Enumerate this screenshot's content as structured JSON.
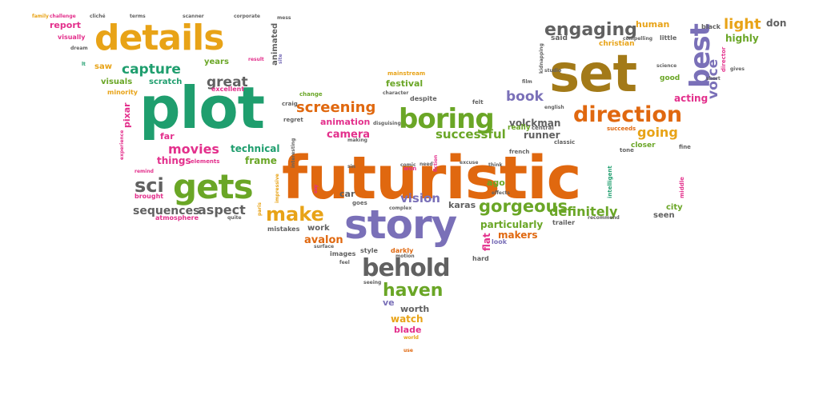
{
  "colors": {
    "green": "#1f9e6e",
    "orange": "#e0680f",
    "gold": "#e8a317",
    "olive": "#6aa626",
    "purple": "#7a70b8",
    "gray": "#616161",
    "pink": "#e3308c",
    "brown": "#a37a18"
  },
  "words": [
    {
      "text": "futuristic",
      "color": "orange"
    },
    {
      "text": "plot",
      "color": "green"
    },
    {
      "text": "set",
      "color": "brown"
    },
    {
      "text": "details",
      "color": "gold"
    },
    {
      "text": "story",
      "color": "purple"
    },
    {
      "text": "gets",
      "color": "olive"
    },
    {
      "text": "boring",
      "color": "olive"
    },
    {
      "text": "behold",
      "color": "gray"
    },
    {
      "text": "best",
      "color": "purple"
    },
    {
      "text": "direction",
      "color": "orange"
    },
    {
      "text": "engaging",
      "color": "gray"
    },
    {
      "text": "make",
      "color": "gold"
    },
    {
      "text": "gorgeous",
      "color": "olive"
    },
    {
      "text": "haven",
      "color": "olive"
    },
    {
      "text": "capture",
      "color": "green"
    },
    {
      "text": "screening",
      "color": "orange"
    },
    {
      "text": "sci",
      "color": "gray"
    },
    {
      "text": "light",
      "color": "gold"
    },
    {
      "text": "voice",
      "color": "purple"
    },
    {
      "text": "great",
      "color": "gray"
    },
    {
      "text": "movies",
      "color": "pink"
    },
    {
      "text": "aspect",
      "color": "gray"
    },
    {
      "text": "sequences",
      "color": "gray"
    },
    {
      "text": "definitely",
      "color": "olive"
    },
    {
      "text": "vision",
      "color": "purple"
    },
    {
      "text": "book",
      "color": "purple"
    },
    {
      "text": "successful",
      "color": "olive"
    },
    {
      "text": "going",
      "color": "gold"
    },
    {
      "text": "camera",
      "color": "pink"
    },
    {
      "text": "volckman",
      "color": "gray"
    },
    {
      "text": "report",
      "color": "pink"
    },
    {
      "text": "don",
      "color": "gray"
    },
    {
      "text": "highly",
      "color": "olive"
    },
    {
      "text": "acting",
      "color": "pink"
    },
    {
      "text": "human",
      "color": "gold"
    },
    {
      "text": "technical",
      "color": "green"
    },
    {
      "text": "frame",
      "color": "olive"
    },
    {
      "text": "things",
      "color": "pink"
    },
    {
      "text": "visuals",
      "color": "olive"
    },
    {
      "text": "scratch",
      "color": "green"
    },
    {
      "text": "years",
      "color": "olive"
    },
    {
      "text": "animated",
      "color": "gray"
    },
    {
      "text": "saw",
      "color": "gold"
    },
    {
      "text": "festival",
      "color": "olive"
    },
    {
      "text": "particularly",
      "color": "olive"
    },
    {
      "text": "makers",
      "color": "orange"
    },
    {
      "text": "runner",
      "color": "gray"
    },
    {
      "text": "karas",
      "color": "gray"
    },
    {
      "text": "pixar",
      "color": "pink"
    },
    {
      "text": "far",
      "color": "pink"
    },
    {
      "text": "car",
      "color": "gray"
    },
    {
      "text": "work",
      "color": "gray"
    },
    {
      "text": "avalon",
      "color": "orange"
    },
    {
      "text": "watch",
      "color": "gold"
    },
    {
      "text": "blade",
      "color": "pink"
    },
    {
      "text": "worth",
      "color": "gray"
    },
    {
      "text": "ve",
      "color": "purple"
    },
    {
      "text": "city",
      "color": "olive"
    },
    {
      "text": "seen",
      "color": "gray"
    },
    {
      "text": "flat",
      "color": "pink"
    },
    {
      "text": "ago",
      "color": "olive"
    },
    {
      "text": "animation",
      "color": "pink"
    },
    {
      "text": "said",
      "color": "gray"
    },
    {
      "text": "christian",
      "color": "gold"
    },
    {
      "text": "black",
      "color": "gray"
    },
    {
      "text": "good",
      "color": "olive"
    },
    {
      "text": "little",
      "color": "gray"
    },
    {
      "text": "brought",
      "color": "pink"
    },
    {
      "text": "atmosphere",
      "color": "pink"
    },
    {
      "text": "elements",
      "color": "pink"
    },
    {
      "text": "minority",
      "color": "gold"
    },
    {
      "text": "excellent",
      "color": "pink"
    },
    {
      "text": "craig",
      "color": "gray"
    },
    {
      "text": "regret",
      "color": "gray"
    },
    {
      "text": "change",
      "color": "olive"
    },
    {
      "text": "mistakes",
      "color": "gray"
    },
    {
      "text": "images",
      "color": "gray"
    },
    {
      "text": "style",
      "color": "gray"
    },
    {
      "text": "darkly",
      "color": "orange"
    },
    {
      "text": "trailer",
      "color": "gray"
    },
    {
      "text": "look",
      "color": "purple"
    },
    {
      "text": "hard",
      "color": "gray"
    },
    {
      "text": "closer",
      "color": "olive"
    },
    {
      "text": "fine",
      "color": "gray"
    },
    {
      "text": "tone",
      "color": "gray"
    },
    {
      "text": "middle",
      "color": "pink"
    },
    {
      "text": "intelligent",
      "color": "green"
    },
    {
      "text": "succeeds",
      "color": "orange"
    },
    {
      "text": "classic",
      "color": "gray"
    },
    {
      "text": "french",
      "color": "gray"
    },
    {
      "text": "despite",
      "color": "gray"
    },
    {
      "text": "mainstream",
      "color": "gold"
    },
    {
      "text": "character",
      "color": "gray"
    },
    {
      "text": "felt",
      "color": "gray"
    },
    {
      "text": "really",
      "color": "olive"
    },
    {
      "text": "central",
      "color": "gray"
    },
    {
      "text": "won",
      "color": "pink"
    },
    {
      "text": "goes",
      "color": "gray"
    },
    {
      "text": "complex",
      "color": "gray"
    },
    {
      "text": "effects",
      "color": "gray"
    },
    {
      "text": "dream",
      "color": "gray"
    },
    {
      "text": "visually",
      "color": "pink"
    },
    {
      "text": "family",
      "color": "gold"
    },
    {
      "text": "challenge",
      "color": "pink"
    },
    {
      "text": "cliché",
      "color": "gray"
    },
    {
      "text": "terms",
      "color": "gray"
    },
    {
      "text": "scanner",
      "color": "gray"
    },
    {
      "text": "corporate",
      "color": "gray"
    },
    {
      "text": "mess",
      "color": "gray"
    },
    {
      "text": "result",
      "color": "pink"
    },
    {
      "text": "site",
      "color": "purple"
    },
    {
      "text": "lt",
      "color": "green"
    },
    {
      "text": "remind",
      "color": "pink"
    },
    {
      "text": "experience",
      "color": "pink"
    },
    {
      "text": "impressive",
      "color": "gold"
    },
    {
      "text": "paris",
      "color": "gold"
    },
    {
      "text": "quite",
      "color": "gray"
    },
    {
      "text": "surface",
      "color": "gray"
    },
    {
      "text": "feel",
      "color": "gray"
    },
    {
      "text": "seeing",
      "color": "gray"
    },
    {
      "text": "motion",
      "color": "gray"
    },
    {
      "text": "world",
      "color": "gold"
    },
    {
      "text": "use",
      "color": "orange"
    },
    {
      "text": "fiction",
      "color": "pink"
    },
    {
      "text": "comic",
      "color": "gray"
    },
    {
      "text": "need",
      "color": "gray"
    },
    {
      "text": "excuse",
      "color": "gray"
    },
    {
      "text": "think",
      "color": "gray"
    },
    {
      "text": "making",
      "color": "gray"
    },
    {
      "text": "disguising",
      "color": "gray"
    },
    {
      "text": "interesting",
      "color": "gray"
    },
    {
      "text": "say",
      "color": "pink"
    },
    {
      "text": "sin",
      "color": "gray"
    },
    {
      "text": "film",
      "color": "gray"
    },
    {
      "text": "director",
      "color": "pink"
    },
    {
      "text": "gives",
      "color": "gray"
    },
    {
      "text": "science",
      "color": "gray"
    },
    {
      "text": "short",
      "color": "gray"
    },
    {
      "text": "compelling",
      "color": "gray"
    },
    {
      "text": "studio",
      "color": "gray"
    },
    {
      "text": "kidnapping",
      "color": "gray"
    },
    {
      "text": "recommend",
      "color": "gray"
    },
    {
      "text": "english",
      "color": "gray"
    }
  ]
}
